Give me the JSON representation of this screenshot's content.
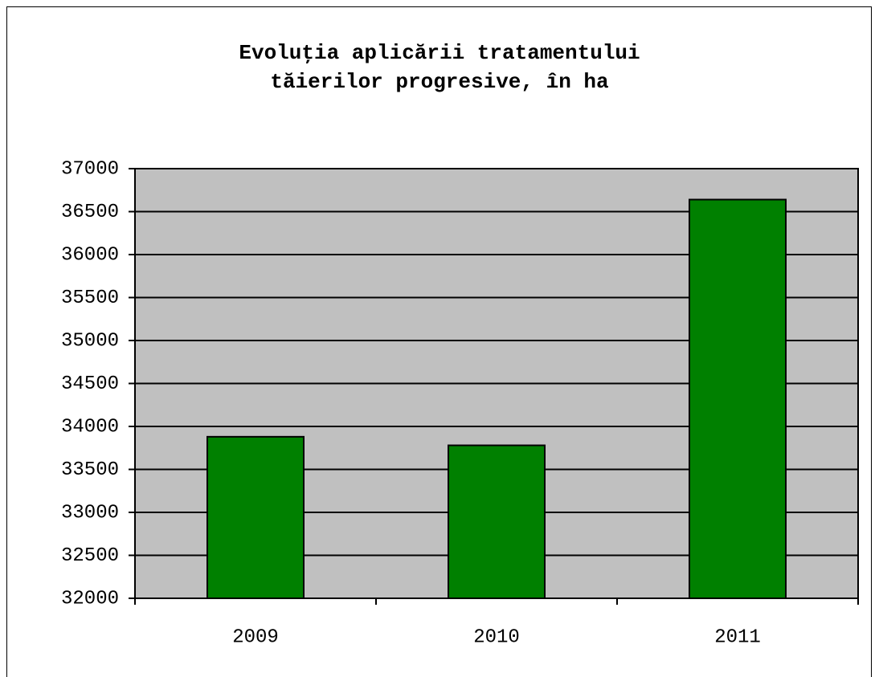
{
  "chart_data": {
    "type": "bar",
    "title": "Evoluţia aplicării tratamentului tăierilor progresive, în ha",
    "categories": [
      "2009",
      "2010",
      "2011"
    ],
    "values": [
      33880,
      33780,
      36640
    ],
    "color": "#008000",
    "plot_background": "#c0c0c0",
    "ylim": [
      32000,
      37000
    ],
    "yticks": [
      32000,
      32500,
      33000,
      33500,
      34000,
      34500,
      35000,
      35500,
      36000,
      36500,
      37000
    ],
    "grid": true
  }
}
